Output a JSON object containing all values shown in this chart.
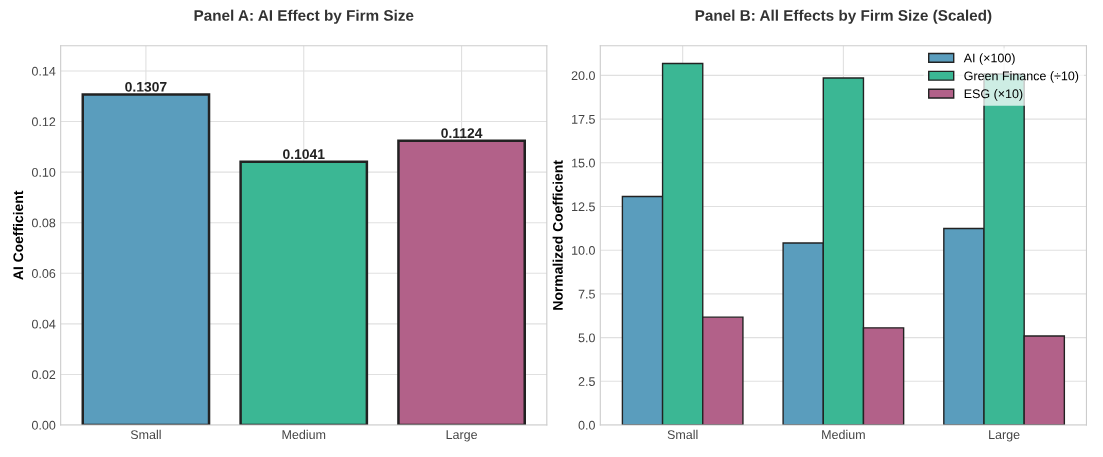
{
  "chart_data": [
    {
      "type": "bar",
      "title": "Panel A: AI Effect by Firm Size",
      "ylabel": "AI Coefficient",
      "categories": [
        "Small",
        "Medium",
        "Large"
      ],
      "values": [
        0.1307,
        0.1041,
        0.1124
      ],
      "colors": [
        "#5a9dbd",
        "#3bb794",
        "#b26189"
      ],
      "data_labels": true,
      "ylim": [
        0,
        0.15
      ],
      "yticks": [
        {
          "value": 0,
          "label": "0.00"
        },
        {
          "value": 0.02,
          "label": "0.02"
        },
        {
          "value": 0.04,
          "label": "0.04"
        },
        {
          "value": 0.06,
          "label": "0.06"
        },
        {
          "value": 0.08,
          "label": "0.08"
        },
        {
          "value": 0.1,
          "label": "0.10"
        },
        {
          "value": 0.12,
          "label": "0.12"
        },
        {
          "value": 0.14,
          "label": "0.14"
        }
      ],
      "grid": true
    },
    {
      "type": "bar",
      "title": "Panel B: All Effects by Firm Size (Scaled)",
      "ylabel": "Normalized Coefficient",
      "categories": [
        "Small",
        "Medium",
        "Large"
      ],
      "series": [
        {
          "name": "AI (×100)",
          "color": "#5a9dbd",
          "values": [
            13.07,
            10.41,
            11.24
          ]
        },
        {
          "name": "Green Finance (÷10)",
          "color": "#3bb794",
          "values": [
            20.68,
            19.85,
            20.08
          ]
        },
        {
          "name": "ESG (×10)",
          "color": "#b26189",
          "values": [
            6.17,
            5.56,
            5.09
          ]
        }
      ],
      "ylim": [
        0,
        21.7
      ],
      "yticks": [
        {
          "value": 0,
          "label": "0.0"
        },
        {
          "value": 2.5,
          "label": "2.5"
        },
        {
          "value": 5,
          "label": "5.0"
        },
        {
          "value": 7.5,
          "label": "7.5"
        },
        {
          "value": 10,
          "label": "10.0"
        },
        {
          "value": 12.5,
          "label": "12.5"
        },
        {
          "value": 15,
          "label": "15.0"
        },
        {
          "value": 17.5,
          "label": "17.5"
        },
        {
          "value": 20,
          "label": "20.0"
        }
      ],
      "grid": true,
      "legend": "top right"
    }
  ]
}
